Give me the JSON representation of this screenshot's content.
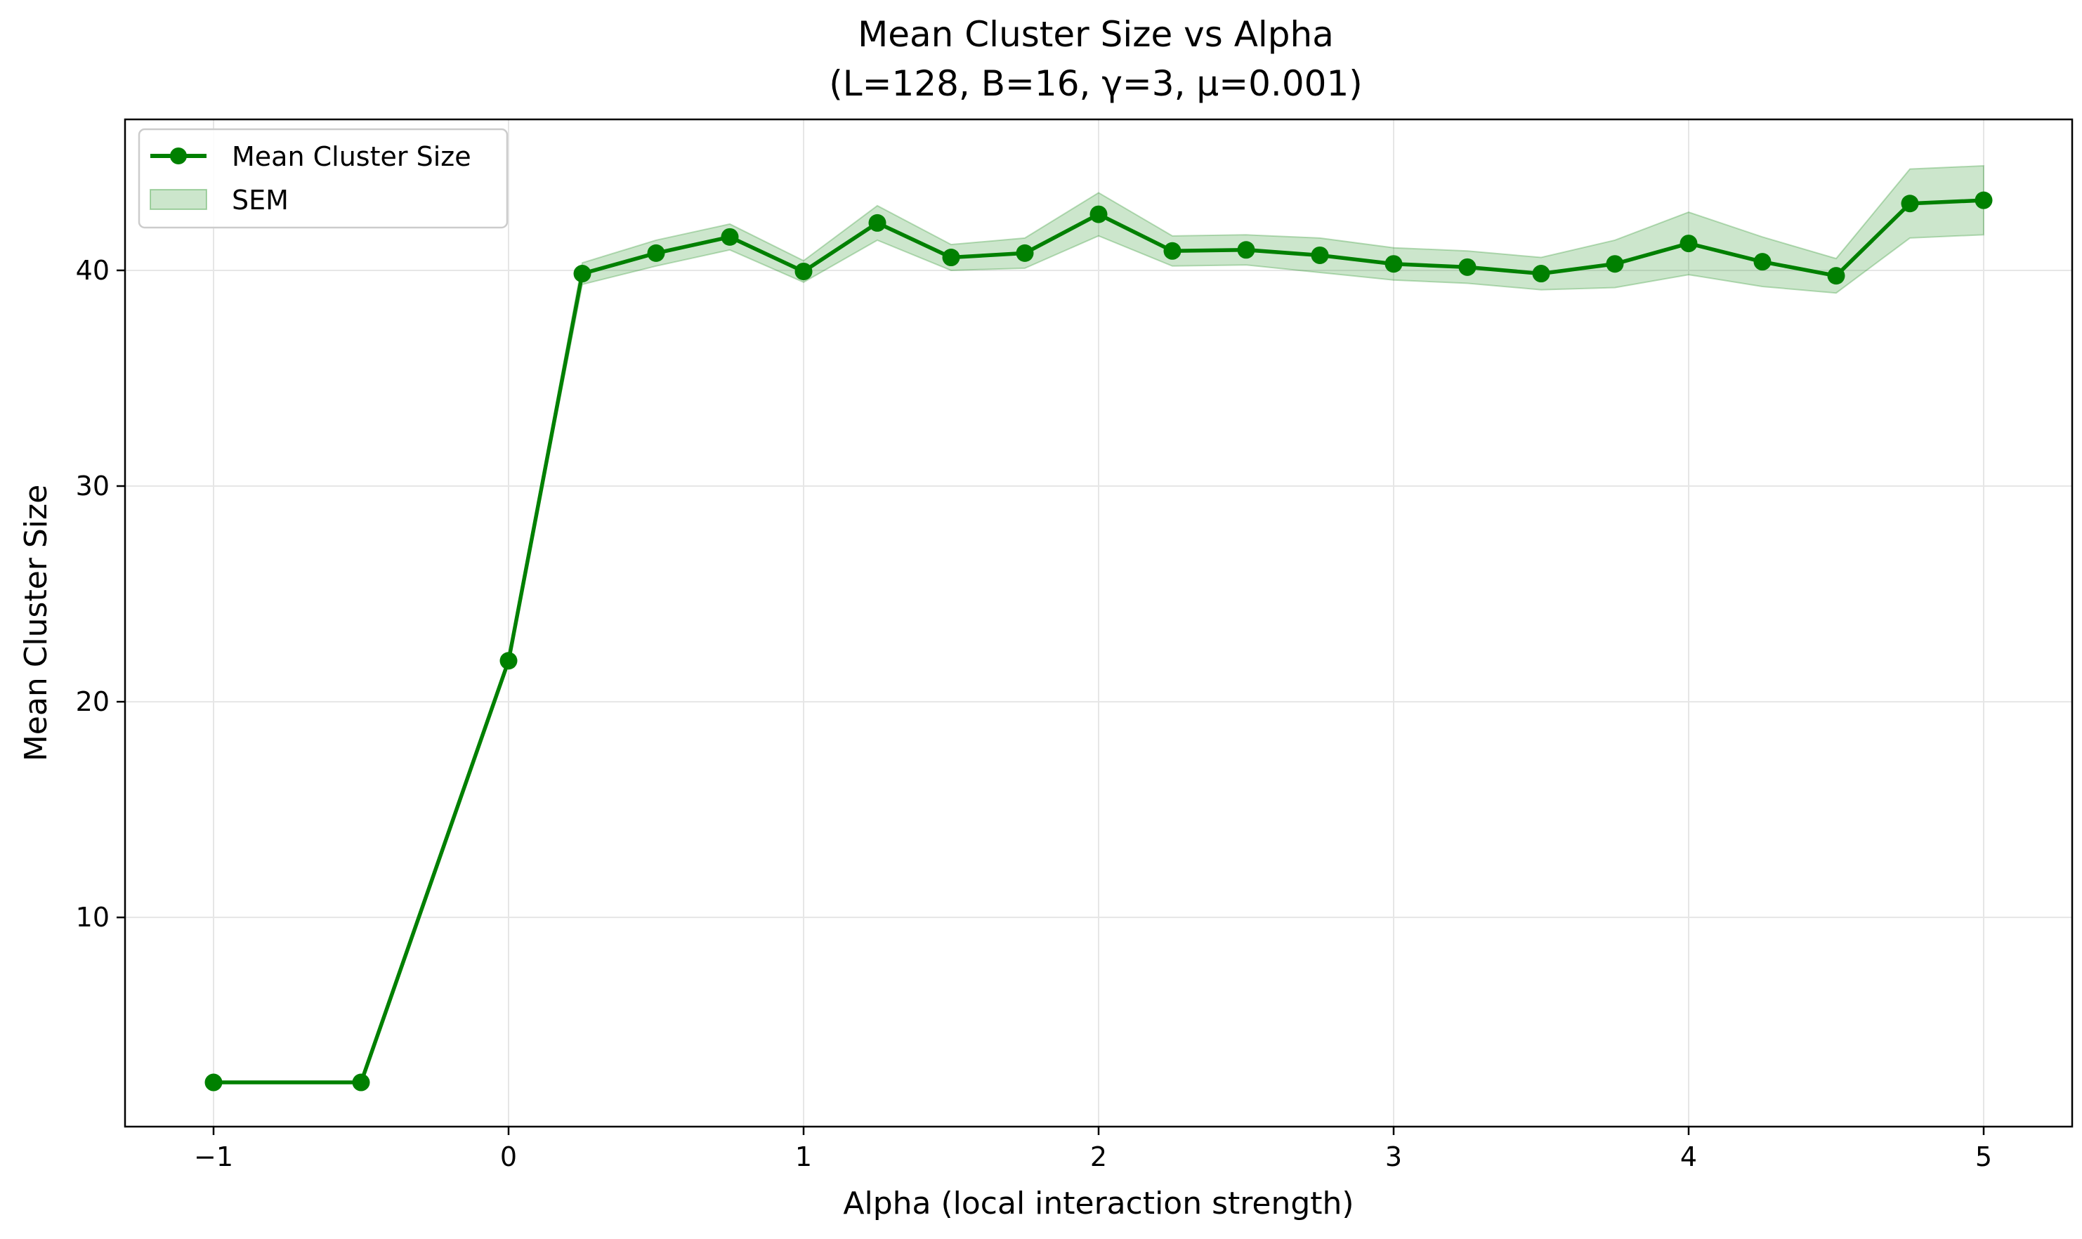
{
  "chart_data": {
    "type": "line",
    "title": "Mean Cluster Size vs Alpha",
    "subtitle": "(L=128, B=16, γ=3, μ=0.001)",
    "xlabel": "Alpha (local interaction strength)",
    "ylabel": "Mean Cluster Size",
    "xlim": [
      -1.3,
      5.3
    ],
    "ylim": [
      0.3,
      47.0
    ],
    "x_ticks": [
      -1,
      0,
      1,
      2,
      3,
      4,
      5
    ],
    "x_tick_labels": [
      "−1",
      "0",
      "1",
      "2",
      "3",
      "4",
      "5"
    ],
    "y_ticks": [
      10,
      20,
      30,
      40
    ],
    "y_tick_labels": [
      "10",
      "20",
      "30",
      "40"
    ],
    "grid": true,
    "legend_position": "top-left",
    "colors": {
      "line": "#008000",
      "band": "#008000",
      "grid": "#e6e6e6",
      "axes": "#000000"
    },
    "series": [
      {
        "name": "Mean Cluster Size",
        "kind": "line-markers",
        "x": [
          -1,
          -0.5,
          0,
          0.25,
          0.5,
          0.75,
          1,
          1.25,
          1.5,
          1.75,
          2,
          2.25,
          2.5,
          2.75,
          3,
          3.25,
          3.5,
          3.75,
          4,
          4.25,
          4.5,
          4.75,
          5
        ],
        "y": [
          2.35,
          2.35,
          21.9,
          39.85,
          40.8,
          41.55,
          39.95,
          42.2,
          40.6,
          40.8,
          42.6,
          40.9,
          40.95,
          40.7,
          40.3,
          40.15,
          39.85,
          40.3,
          41.25,
          40.4,
          39.75,
          43.1,
          43.25
        ]
      },
      {
        "name": "SEM",
        "kind": "band",
        "x": [
          -1,
          -0.5,
          0,
          0.25,
          0.5,
          0.75,
          1,
          1.25,
          1.5,
          1.75,
          2,
          2.25,
          2.5,
          2.75,
          3,
          3.25,
          3.5,
          3.75,
          4,
          4.25,
          4.5,
          4.75,
          5
        ],
        "lower": [
          2.35,
          2.35,
          21.9,
          39.35,
          40.2,
          40.95,
          39.45,
          41.4,
          40.0,
          40.1,
          41.6,
          40.2,
          40.25,
          39.9,
          39.55,
          39.4,
          39.1,
          39.2,
          39.8,
          39.25,
          38.95,
          41.5,
          41.65
        ],
        "upper": [
          2.35,
          2.35,
          21.9,
          40.35,
          41.4,
          42.15,
          40.45,
          43.0,
          41.2,
          41.5,
          43.6,
          41.6,
          41.65,
          41.5,
          41.05,
          40.9,
          40.6,
          41.4,
          42.7,
          41.55,
          40.55,
          44.7,
          44.85
        ]
      }
    ]
  }
}
